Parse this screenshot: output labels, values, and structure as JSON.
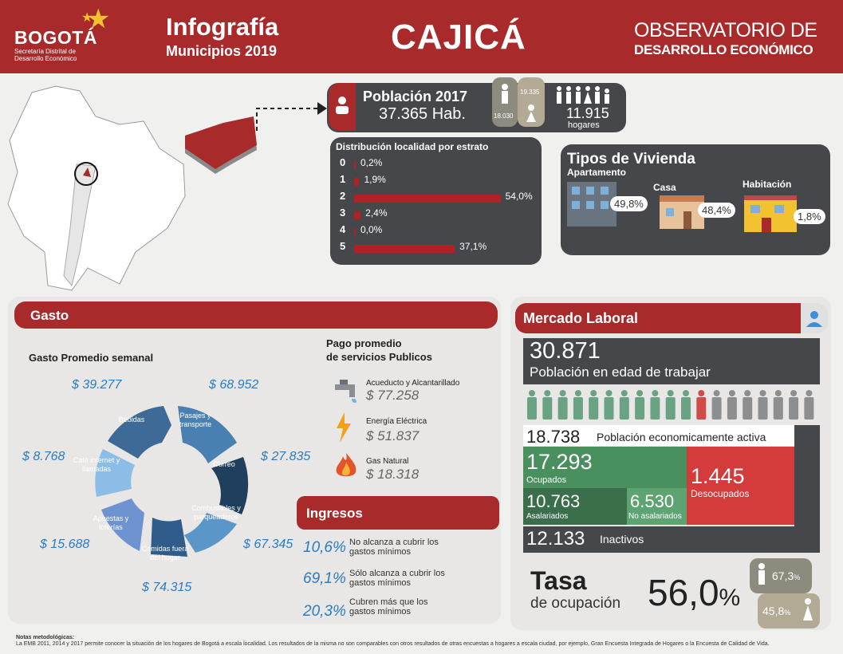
{
  "header": {
    "logo": "BOGOTÁ",
    "logo_sub": "Secretaría Distrital de Desarrollo Económico",
    "title": "Infografía",
    "subtitle": "Municipios 2019",
    "city": "CAJICÁ",
    "observatory_line1": "OBSERVATORIO DE",
    "observatory_line2": "DESARROLLO ECONÓMICO"
  },
  "poblacion": {
    "label": "Población 2017",
    "value": "37.365 Hab.",
    "men": "18.030",
    "women": "19.335",
    "households": "11.915",
    "households_label": "hogares"
  },
  "estrato": {
    "title": "Distribución localidad por estrato",
    "rows": [
      {
        "key": "0",
        "value": "0,2%",
        "pct": 0.2
      },
      {
        "key": "1",
        "value": "1,9%",
        "pct": 1.9
      },
      {
        "key": "2",
        "value": "54,0%",
        "pct": 54.0
      },
      {
        "key": "3",
        "value": "2,4%",
        "pct": 2.4
      },
      {
        "key": "4",
        "value": "0,0%",
        "pct": 0.0
      },
      {
        "key": "5",
        "value": "37,1%",
        "pct": 37.1
      }
    ]
  },
  "vivienda": {
    "title": "Tipos de Vivienda",
    "items": [
      {
        "label": "Apartamento",
        "value": "49,8%"
      },
      {
        "label": "Casa",
        "value": "48,4%"
      },
      {
        "label": "Habitación",
        "value": "1,8%"
      }
    ]
  },
  "gasto": {
    "title": "Gasto",
    "subtitle": "Gasto Promedio semanal",
    "segments": [
      {
        "label": "Bebidas",
        "value": "$ 39.277"
      },
      {
        "label": "Pasajes y transporte",
        "value": "$ 68.952"
      },
      {
        "label": "Correo",
        "value": "$ 27.835"
      },
      {
        "label": "Combustibles y parqueaderos",
        "value": "$ 67.345"
      },
      {
        "label": "Comidas fuera del hogar",
        "value": "$ 74.315"
      },
      {
        "label": "Apuestas y loterías",
        "value": "$ 15.688"
      },
      {
        "label": "Café internet y llamadas",
        "value": "$ 8.768"
      }
    ],
    "servicios_title_1": "Pago promedio",
    "servicios_title_2": "de servicios Publicos",
    "servicios": [
      {
        "label": "Acueducto y Alcantarillado",
        "value": "$ 77.258",
        "icon": "faucet-icon"
      },
      {
        "label": "Energía Eléctrica",
        "value": "$ 51.837",
        "icon": "lightning-icon"
      },
      {
        "label": "Gas Natural",
        "value": "$ 18.318",
        "icon": "flame-icon"
      }
    ]
  },
  "ingresos": {
    "title": "Ingresos",
    "items": [
      {
        "pct": "10,6%",
        "text": "No alcanza a cubrir los gastos mínimos"
      },
      {
        "pct": "69,1%",
        "text": "Sólo alcanza a cubrir los gastos mínimos"
      },
      {
        "pct": "20,3%",
        "text": "Cubren más que los gastos mínimos"
      }
    ]
  },
  "mercado": {
    "title": "Mercado Laboral",
    "pet_value": "30.871",
    "pet_label": "Población en edad de trabajar",
    "pea_value": "18.738",
    "pea_label": "Población economicamente activa",
    "ocupados_value": "17.293",
    "ocupados_label": "Ocupados",
    "desocupados_value": "1.445",
    "desocupados_label": "Desocupados",
    "asalariados_value": "10.763",
    "asalariados_label": "Asalariados",
    "no_asalariados_value": "6.530",
    "no_asalariados_label": "No asalariados",
    "inactivos_value": "12.133",
    "inactivos_label": "Inactivos",
    "tasa_title": "Tasa",
    "tasa_sub": "de ocupación",
    "tasa_value": "56,0",
    "tasa_pct": "%",
    "tasa_men": "67,3",
    "tasa_women": "45,8",
    "pct_sign": "%"
  },
  "notas": {
    "title": "Notas metodológicas:",
    "text": "La EMB 2011, 2014 y 2017 permite conocer la situación de los hogares de Bogotá a escala localidad. Los resultados de la misma no son comparables con otros resultados de otras encuestas a hogares a escala ciudad, por ejemplo, Gran Encuesta Integrada de Hogares o la Encuesta de Calidad de Vida."
  }
}
